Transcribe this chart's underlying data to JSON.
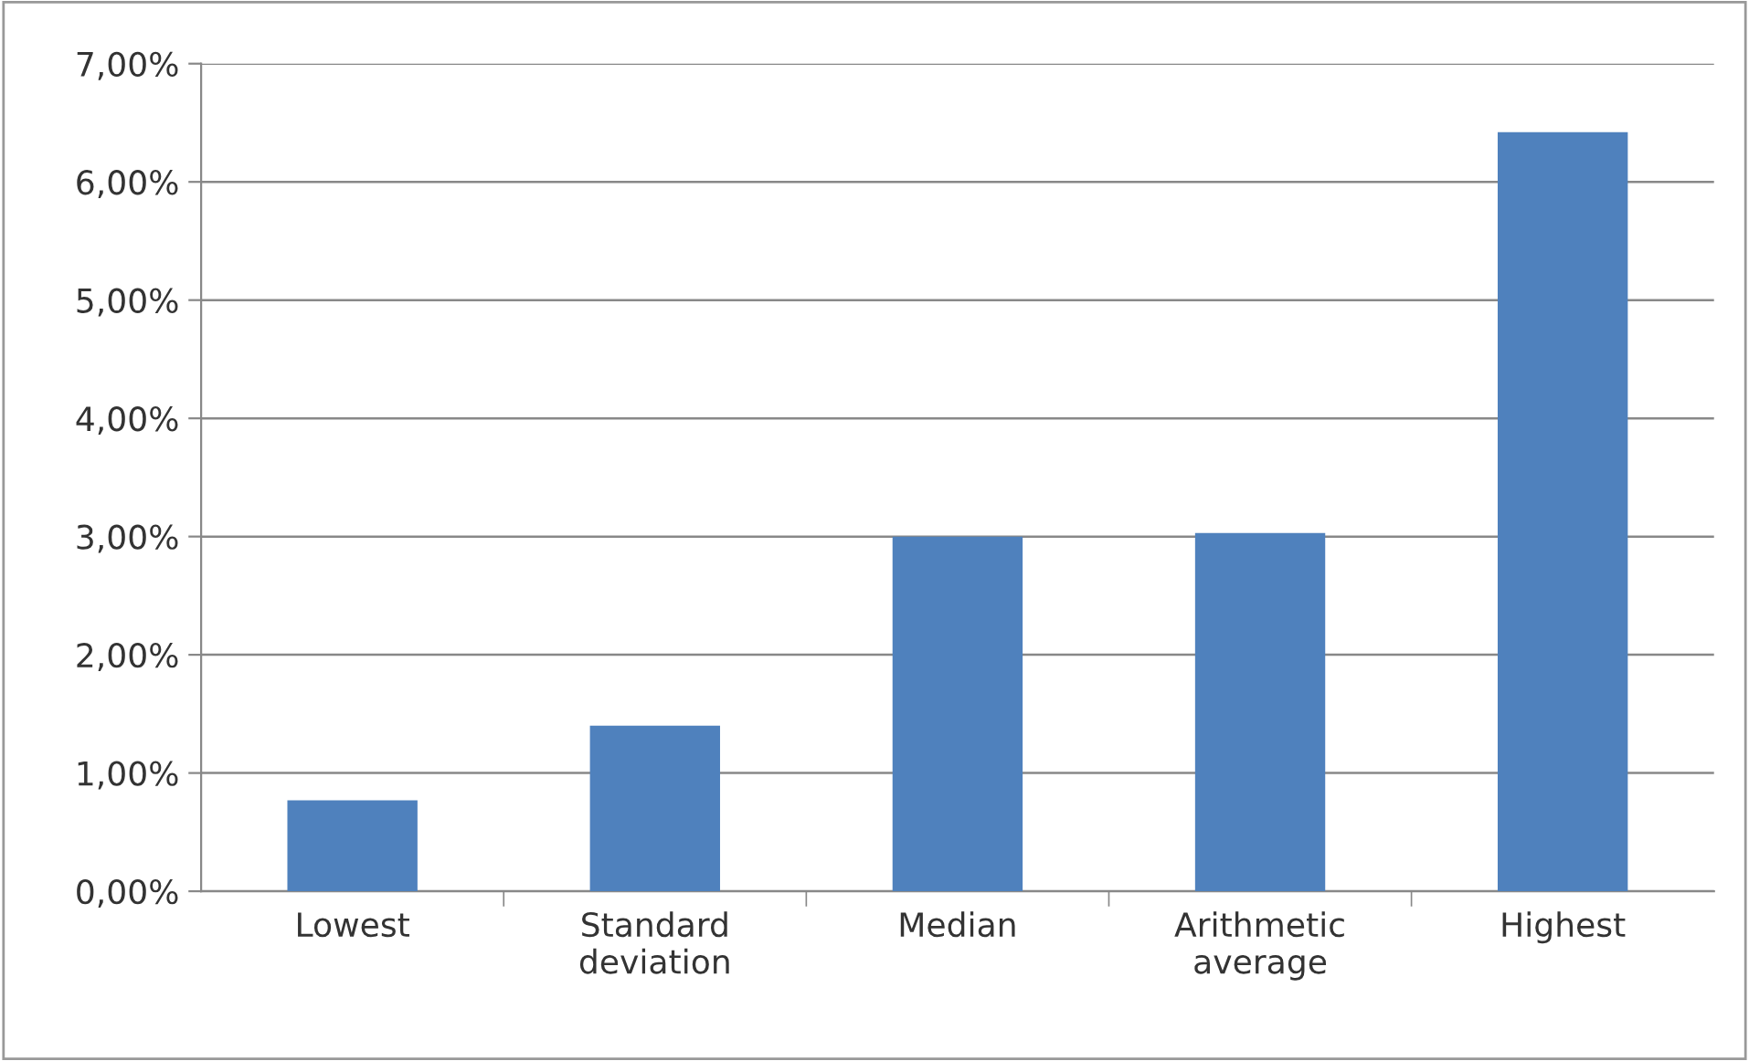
{
  "chart_data": {
    "type": "bar",
    "categories": [
      "Lowest",
      "Standard\ndeviation",
      "Median",
      "Arithmetic\naverage",
      "Highest"
    ],
    "values": [
      0.77,
      1.4,
      3.0,
      3.03,
      6.42
    ],
    "color": "#4f81bd",
    "ylim": [
      0,
      7
    ],
    "yticks": [
      {
        "value": 0,
        "label": "0,00%"
      },
      {
        "value": 1,
        "label": "1,00%"
      },
      {
        "value": 2,
        "label": "2,00%"
      },
      {
        "value": 3,
        "label": "3,00%"
      },
      {
        "value": 4,
        "label": "4,00%"
      },
      {
        "value": 5,
        "label": "5,00%"
      },
      {
        "value": 6,
        "label": "6,00%"
      },
      {
        "value": 7,
        "label": "7,00%"
      }
    ],
    "grid": "y",
    "legend": false
  }
}
